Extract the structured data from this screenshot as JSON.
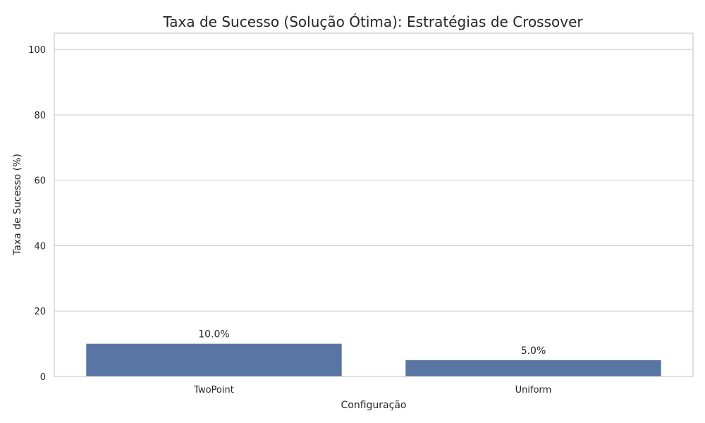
{
  "chart_data": {
    "type": "bar",
    "title": "Taxa de Sucesso (Solução Ótima): Estratégias de Crossover",
    "xlabel": "Configuração",
    "ylabel": "Taxa de Sucesso (%)",
    "categories": [
      "TwoPoint",
      "Uniform"
    ],
    "values": [
      10.0,
      5.0
    ],
    "data_labels": [
      "10.0%",
      "5.0%"
    ],
    "ylim": [
      0,
      105
    ],
    "yticks": [
      0,
      20,
      40,
      60,
      80,
      100
    ],
    "grid": true,
    "bar_color": "#5975a4"
  }
}
